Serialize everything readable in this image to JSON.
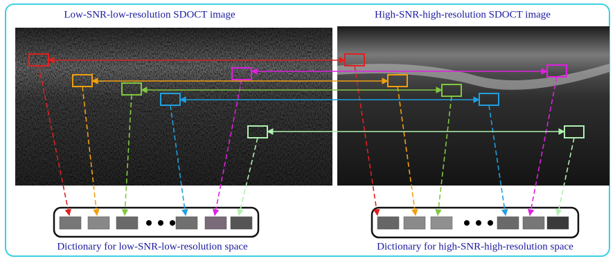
{
  "panels": [
    {
      "title": "Low-SNR-low-resolution SDOCT image",
      "caption": "Dictionary for low-SNR-low-resolution space"
    },
    {
      "title": "High-SNR-high-resolution SDOCT image",
      "caption": "Dictionary for high-SNR-high-resolution space"
    }
  ]
}
